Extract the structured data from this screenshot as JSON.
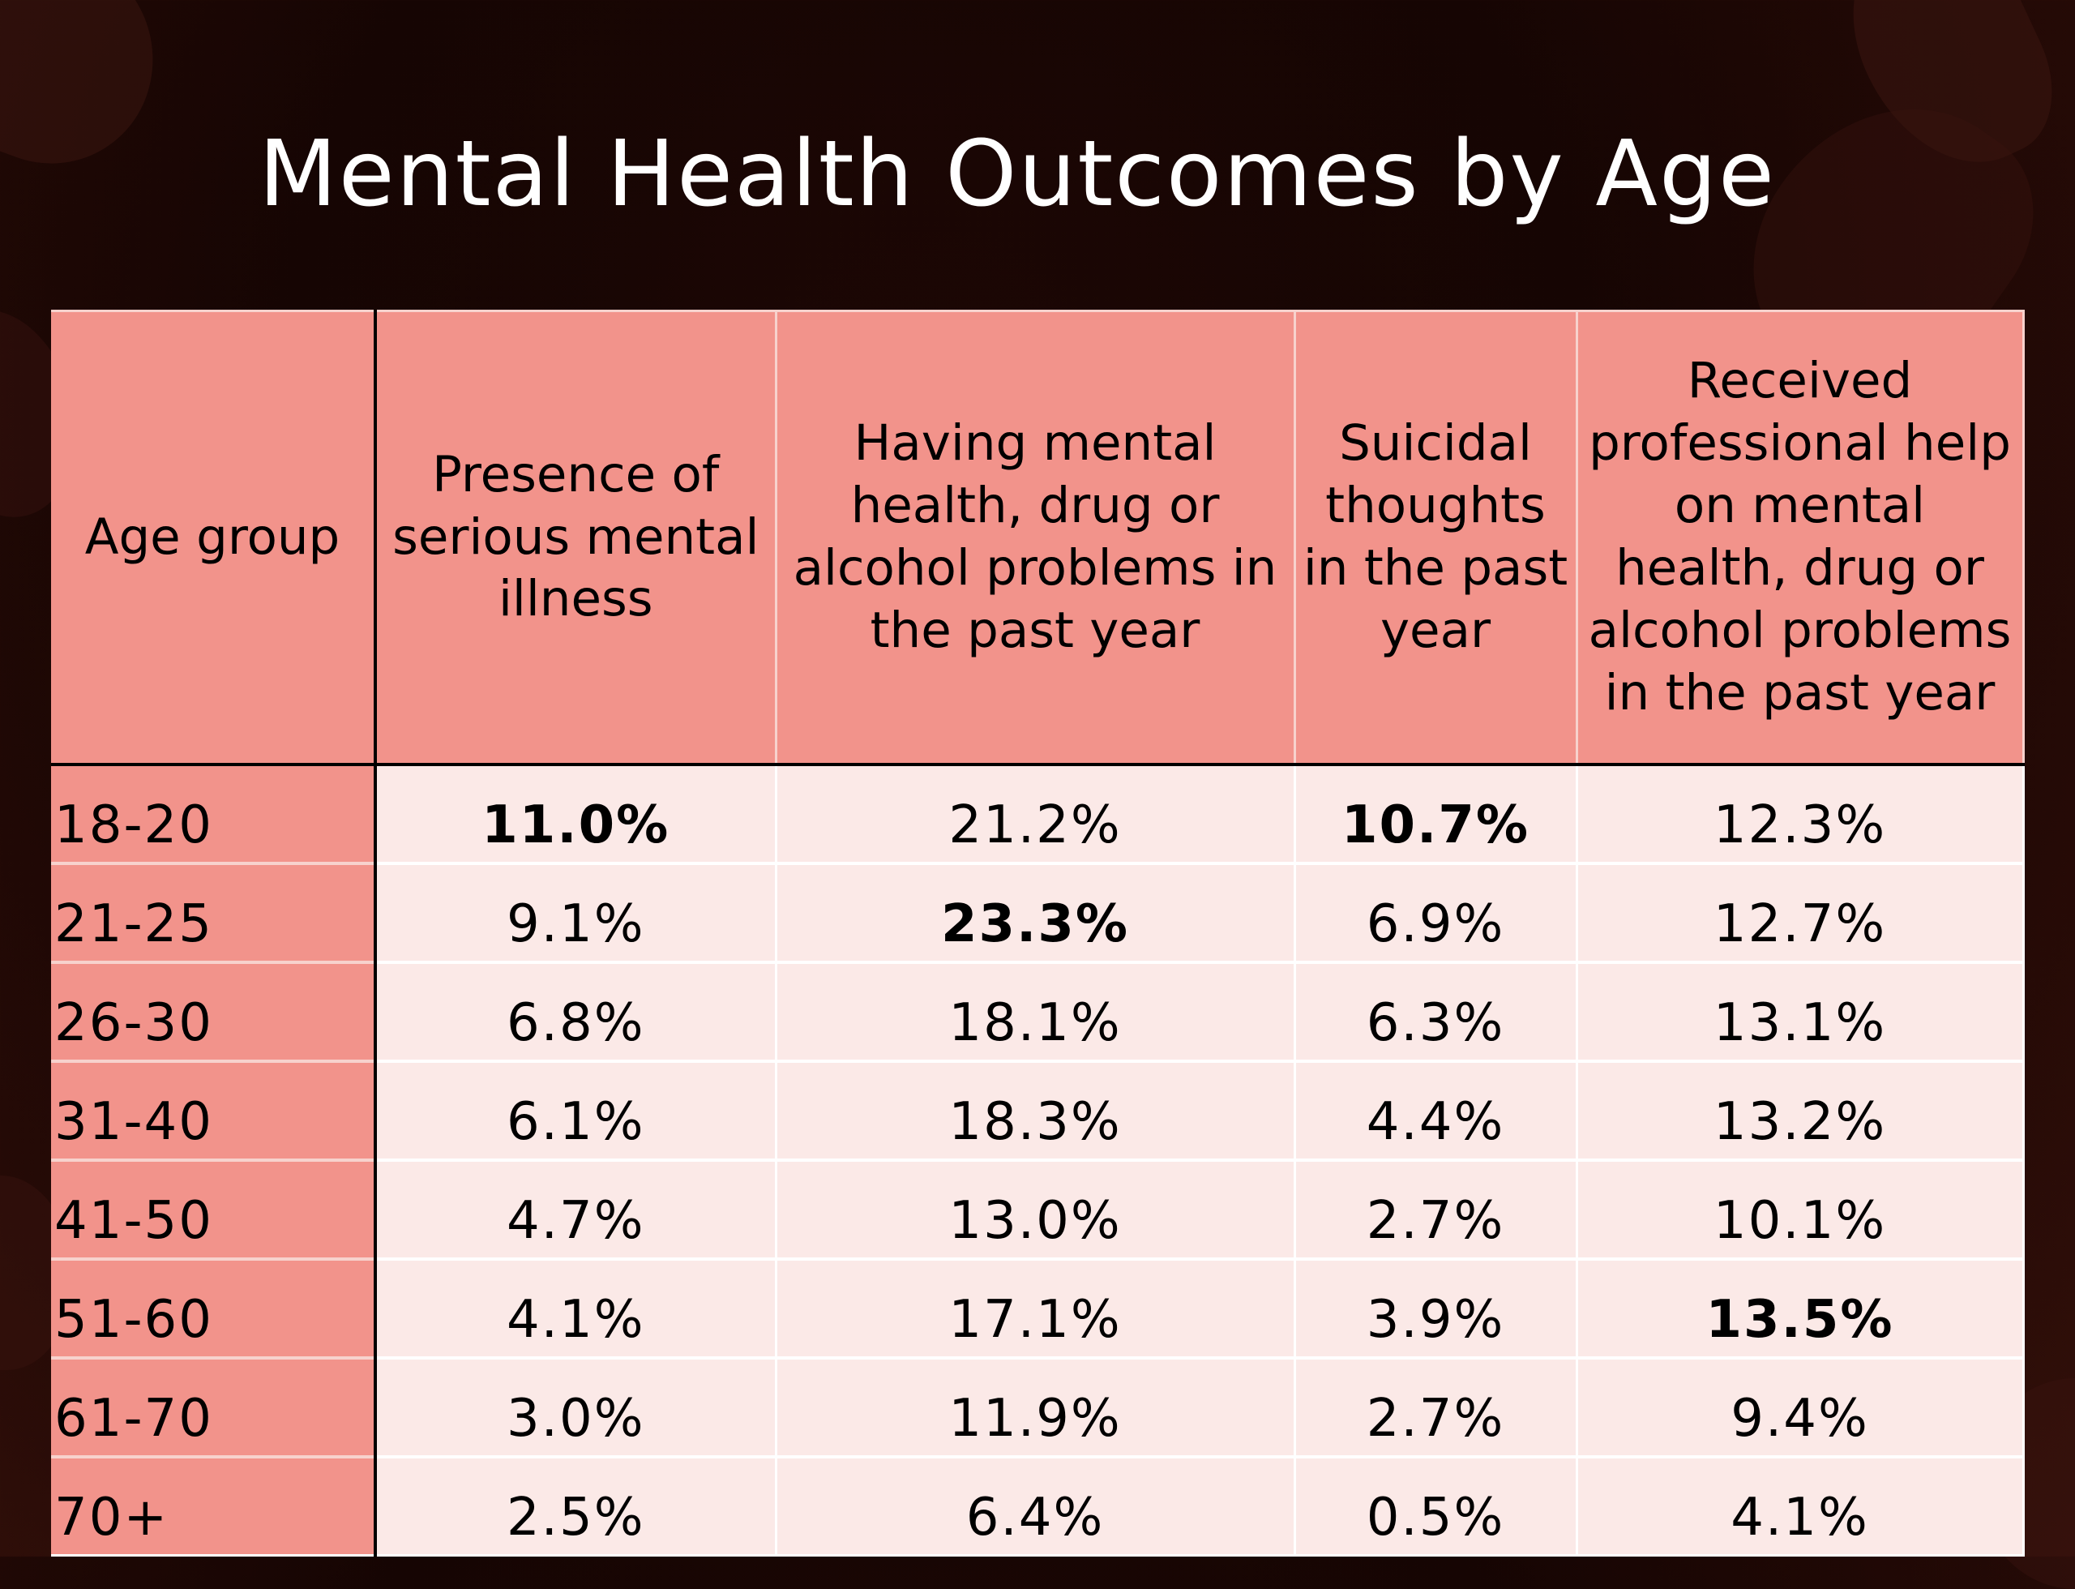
{
  "slide": {
    "title": "Mental Health Outcomes by Age"
  },
  "colors": {
    "header_bg": "#f2938b",
    "row_bg": "#fbe9e7",
    "page_bg": "#1c0704",
    "title_text": "#ffffff"
  },
  "table": {
    "headers": [
      "Age group",
      "Presence of serious mental illness",
      "Having mental health, drug or alcohol problems in the past year",
      "Suicidal thoughts in the past year",
      "Received professional help on mental health, drug or alcohol problems in the past year"
    ],
    "rows": [
      {
        "age": "18-20",
        "cells": [
          "11.0%",
          "21.2%",
          "10.7%",
          "12.3%"
        ],
        "bold": [
          true,
          false,
          true,
          false
        ]
      },
      {
        "age": "21-25",
        "cells": [
          "9.1%",
          "23.3%",
          "6.9%",
          "12.7%"
        ],
        "bold": [
          false,
          true,
          false,
          false
        ]
      },
      {
        "age": "26-30",
        "cells": [
          "6.8%",
          "18.1%",
          "6.3%",
          "13.1%"
        ],
        "bold": [
          false,
          false,
          false,
          false
        ]
      },
      {
        "age": "31-40",
        "cells": [
          "6.1%",
          "18.3%",
          "4.4%",
          "13.2%"
        ],
        "bold": [
          false,
          false,
          false,
          false
        ]
      },
      {
        "age": "41-50",
        "cells": [
          "4.7%",
          "13.0%",
          "2.7%",
          "10.1%"
        ],
        "bold": [
          false,
          false,
          false,
          false
        ]
      },
      {
        "age": "51-60",
        "cells": [
          "4.1%",
          "17.1%",
          "3.9%",
          "13.5%"
        ],
        "bold": [
          false,
          false,
          false,
          true
        ]
      },
      {
        "age": "61-70",
        "cells": [
          "3.0%",
          "11.9%",
          "2.7%",
          "9.4%"
        ],
        "bold": [
          false,
          false,
          false,
          false
        ]
      },
      {
        "age": "70+",
        "cells": [
          "2.5%",
          "6.4%",
          "0.5%",
          "4.1%"
        ],
        "bold": [
          false,
          false,
          false,
          false
        ]
      }
    ]
  }
}
